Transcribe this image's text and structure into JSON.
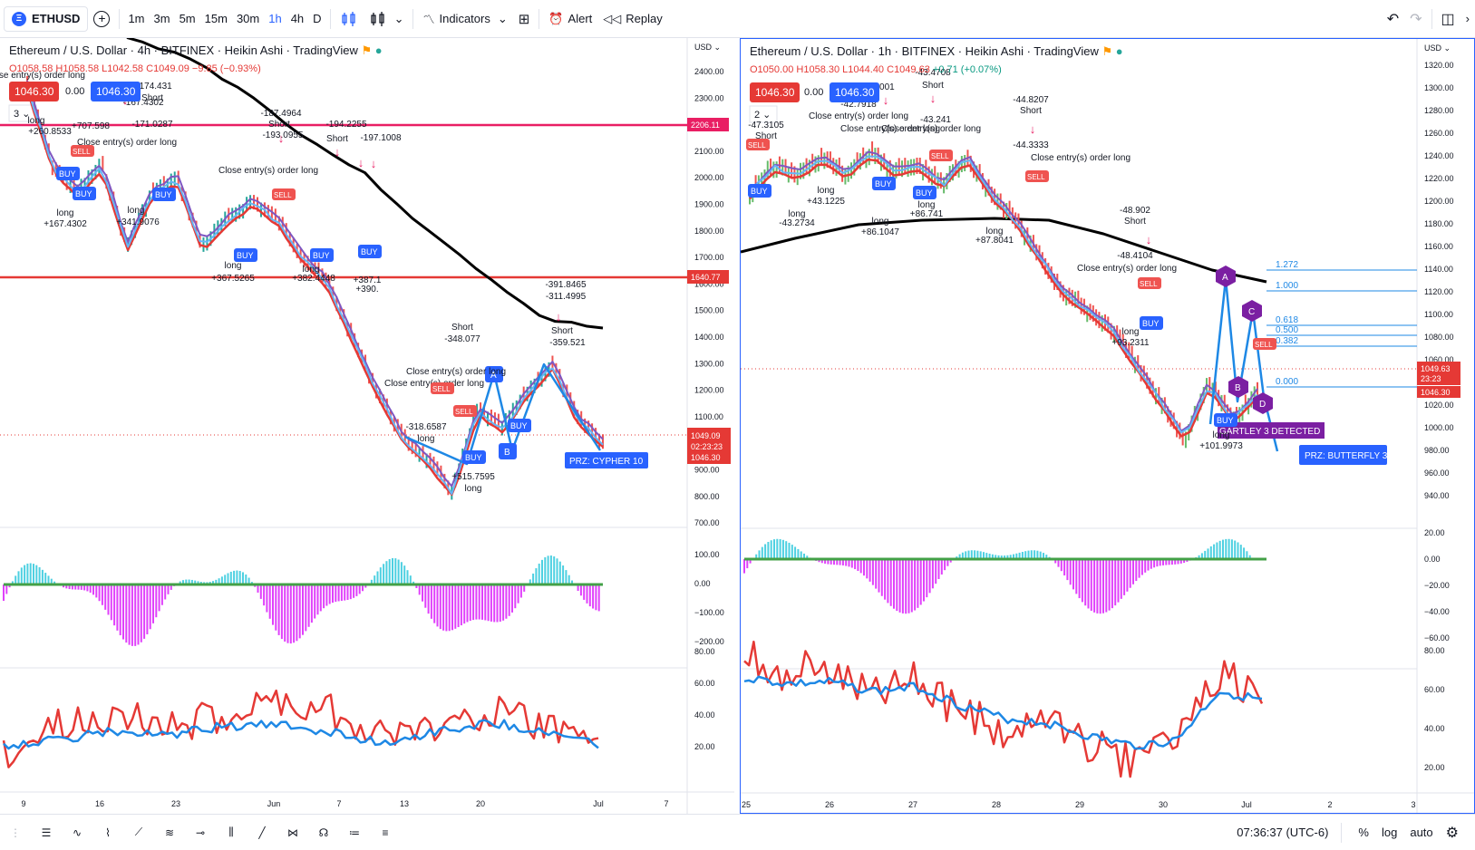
{
  "toolbar": {
    "symbol": "ETHUSD",
    "intervals": [
      "1m",
      "3m",
      "5m",
      "15m",
      "30m",
      "1h",
      "4h",
      "D"
    ],
    "active_interval": "1h",
    "indicators": "Indicators",
    "alert": "Alert",
    "replay": "Replay"
  },
  "left": {
    "title": "Ethereum / U.S. Dollar · 4h · BITFINEX · Heikin Ashi · TradingView",
    "o": "O1058.58",
    "h": "H1058.58",
    "l": "L1042.58",
    "c": "C1049.09",
    "chg": "−9.85 (−0.93%)",
    "bid": "1046.30",
    "spread": "0.00",
    "ask": "1046.30",
    "layout_num": "3",
    "currency": "USD",
    "price_ticks": [
      "2400.00",
      "2300.00",
      "2200.00",
      "2100.00",
      "2000.00",
      "1900.00",
      "1800.00",
      "1700.00",
      "1600.00",
      "1500.00",
      "1400.00",
      "1300.00",
      "1200.00",
      "1100.00",
      "1000.00",
      "900.00",
      "800.00",
      "700.00"
    ],
    "osc_ticks": [
      "100.00",
      "0.00",
      "−100.00",
      "−200.00"
    ],
    "rsi_ticks": [
      "80.00",
      "60.00",
      "40.00",
      "20.00"
    ],
    "x_ticks": [
      "9",
      "16",
      "23",
      "Jun",
      "7",
      "13",
      "20",
      "Jul",
      "7"
    ],
    "line_labels": [
      "2206.11",
      "1640.77"
    ],
    "last_price": "1049.09",
    "countdown": "02:23:23",
    "last_bid": "1046.30",
    "annotations": [
      "-187.4964",
      "Short",
      "-167.4302",
      "-171.0287",
      "-174.431",
      "Short",
      "close entry(s) order long",
      "long",
      "+260.8533",
      "Close entry(s) order long",
      "-193.0955",
      "Close entry(s) order long",
      "-194.2255",
      "Short",
      "-197.1008",
      "long",
      "+167.4302",
      "long",
      "+341.9076",
      "long",
      "+367.5265",
      "long",
      "+382.4448",
      "+387.1",
      "+390.",
      "-391.8465",
      "-311.4995",
      "Short",
      "-348.077",
      "Short",
      "-359.521",
      "Close entry(s) order long",
      "Close entry(s) order long",
      "-318.6587",
      "long",
      "+515.7595",
      "long",
      "+707.598"
    ],
    "prz": "PRZ: CYPHER 10"
  },
  "right": {
    "title": "Ethereum / U.S. Dollar · 1h · BITFINEX · Heikin Ashi · TradingView",
    "o": "O1050.00",
    "h": "H1058.30",
    "l": "L1044.40",
    "c": "C1049.63",
    "chg": "+0.71 (+0.07%)",
    "bid": "1046.30",
    "spread": "0.00",
    "ask": "1046.30",
    "layout_num": "2",
    "currency": "USD",
    "price_ticks": [
      "1320.00",
      "1300.00",
      "1280.00",
      "1260.00",
      "1240.00",
      "1220.00",
      "1200.00",
      "1180.00",
      "1160.00",
      "1140.00",
      "1120.00",
      "1100.00",
      "1080.00",
      "1060.00",
      "1040.00",
      "1020.00",
      "1000.00",
      "980.00",
      "960.00",
      "940.00"
    ],
    "osc_ticks": [
      "20.00",
      "0.00",
      "−20.00",
      "−40.00",
      "−60.00"
    ],
    "rsi_ticks": [
      "80.00",
      "60.00",
      "40.00",
      "20.00"
    ],
    "x_ticks": [
      "25",
      "26",
      "27",
      "28",
      "29",
      "30",
      "Jul",
      "2",
      "3"
    ],
    "fib": [
      "1.272",
      "1.000",
      "0.618",
      "0.500",
      "0.382",
      "0.000"
    ],
    "last_price": "1049.63",
    "countdown": "23:23",
    "last_bid": "1046.30",
    "annotations": [
      "-47.3105",
      "Short",
      "-42.7918",
      "-43.5001",
      "-43.4708",
      "Short",
      "-43.241",
      "-44.8207",
      "Short",
      "-44.3333",
      "Close entry(s) order long",
      "Close entry(s) order long",
      "Close entry(s) order long",
      "Close entry(s) order long",
      "long",
      "+43.1225",
      "long",
      "-43.2734",
      "long",
      "+86.1047",
      "long",
      "+86.741",
      "long",
      "+87.8041",
      "-48.902",
      "Short",
      "-48.4104",
      "Close entry(s) order long",
      "long",
      "+93.2311",
      "long",
      "+101.9973"
    ],
    "pattern": "GARTLEY 3 DETECTED",
    "prz": "PRZ: BUTTERFLY 3"
  },
  "status": {
    "time": "07:36:37 (UTC-6)",
    "pct": "%",
    "log": "log",
    "auto": "auto"
  },
  "colors": {
    "red": "#e53935",
    "blue": "#2962ff",
    "pink": "#e91e63",
    "black": "#000000",
    "teal": "#26a69a",
    "magenta": "#e040fb",
    "green": "#43a047",
    "purple": "#7b1fa2",
    "cyan": "#00bcd4"
  }
}
